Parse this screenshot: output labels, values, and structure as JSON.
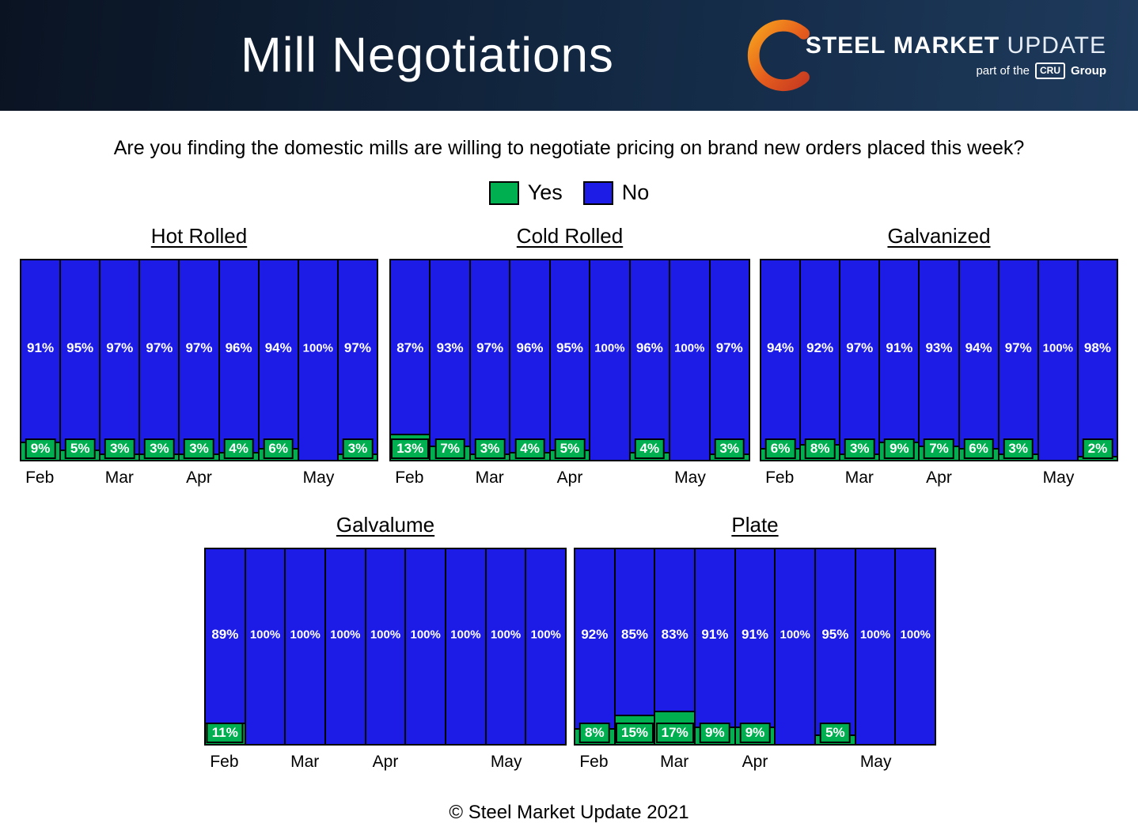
{
  "header": {
    "title": "Mill Negotiations",
    "logo": {
      "steel": "STEEL",
      "market": "MARKET",
      "update": "UPDATE",
      "tagline_prefix": "part of the",
      "tagline_cru": "CRU",
      "tagline_suffix": "Group"
    }
  },
  "question": "Are you finding the domestic mills are willing to negotiate pricing on brand new orders placed this week?",
  "legend": {
    "yes_label": "Yes",
    "no_label": "No",
    "yes_color": "#00b050",
    "no_color": "#1c1ce6"
  },
  "footer": "© Steel Market Update 2021",
  "colors": {
    "yes": "#00b050",
    "no": "#1c1ce6",
    "header_dark": "#0a1322",
    "header_light": "#1e3a5c",
    "logo_orange": "#e8641b"
  },
  "chart_data": [
    {
      "type": "bar",
      "stacked": true,
      "title": "Hot Rolled",
      "ylim": [
        0,
        100
      ],
      "x_tick_labels": [
        "Feb",
        "",
        "Mar",
        "",
        "Apr",
        "",
        "",
        "May",
        ""
      ],
      "series": [
        {
          "name": "No",
          "color": "#1c1ce6",
          "values": [
            91,
            95,
            97,
            97,
            97,
            96,
            94,
            100,
            97
          ]
        },
        {
          "name": "Yes",
          "color": "#00b050",
          "values": [
            9,
            5,
            3,
            3,
            3,
            4,
            6,
            0,
            3
          ]
        }
      ]
    },
    {
      "type": "bar",
      "stacked": true,
      "title": "Cold Rolled",
      "ylim": [
        0,
        100
      ],
      "x_tick_labels": [
        "Feb",
        "",
        "Mar",
        "",
        "Apr",
        "",
        "",
        "May",
        ""
      ],
      "series": [
        {
          "name": "No",
          "color": "#1c1ce6",
          "values": [
            87,
            93,
            97,
            96,
            95,
            100,
            96,
            100,
            97
          ]
        },
        {
          "name": "Yes",
          "color": "#00b050",
          "values": [
            13,
            7,
            3,
            4,
            5,
            0,
            4,
            0,
            3
          ]
        }
      ]
    },
    {
      "type": "bar",
      "stacked": true,
      "title": "Galvanized",
      "ylim": [
        0,
        100
      ],
      "x_tick_labels": [
        "Feb",
        "",
        "Mar",
        "",
        "Apr",
        "",
        "",
        "May",
        ""
      ],
      "series": [
        {
          "name": "No",
          "color": "#1c1ce6",
          "values": [
            94,
            92,
            97,
            91,
            93,
            94,
            97,
            100,
            98
          ]
        },
        {
          "name": "Yes",
          "color": "#00b050",
          "values": [
            6,
            8,
            3,
            9,
            7,
            6,
            3,
            0,
            2
          ]
        }
      ]
    },
    {
      "type": "bar",
      "stacked": true,
      "title": "Galvalume",
      "ylim": [
        0,
        100
      ],
      "x_tick_labels": [
        "Feb",
        "",
        "Mar",
        "",
        "Apr",
        "",
        "",
        "May",
        ""
      ],
      "series": [
        {
          "name": "No",
          "color": "#1c1ce6",
          "values": [
            89,
            100,
            100,
            100,
            100,
            100,
            100,
            100,
            100
          ]
        },
        {
          "name": "Yes",
          "color": "#00b050",
          "values": [
            11,
            0,
            0,
            0,
            0,
            0,
            0,
            0,
            0
          ]
        }
      ]
    },
    {
      "type": "bar",
      "stacked": true,
      "title": "Plate",
      "ylim": [
        0,
        100
      ],
      "x_tick_labels": [
        "Feb",
        "",
        "Mar",
        "",
        "Apr",
        "",
        "",
        "May",
        ""
      ],
      "series": [
        {
          "name": "No",
          "color": "#1c1ce6",
          "values": [
            92,
            85,
            83,
            91,
            91,
            100,
            95,
            100,
            100
          ]
        },
        {
          "name": "Yes",
          "color": "#00b050",
          "values": [
            8,
            15,
            17,
            9,
            9,
            0,
            5,
            0,
            0
          ]
        }
      ]
    }
  ]
}
